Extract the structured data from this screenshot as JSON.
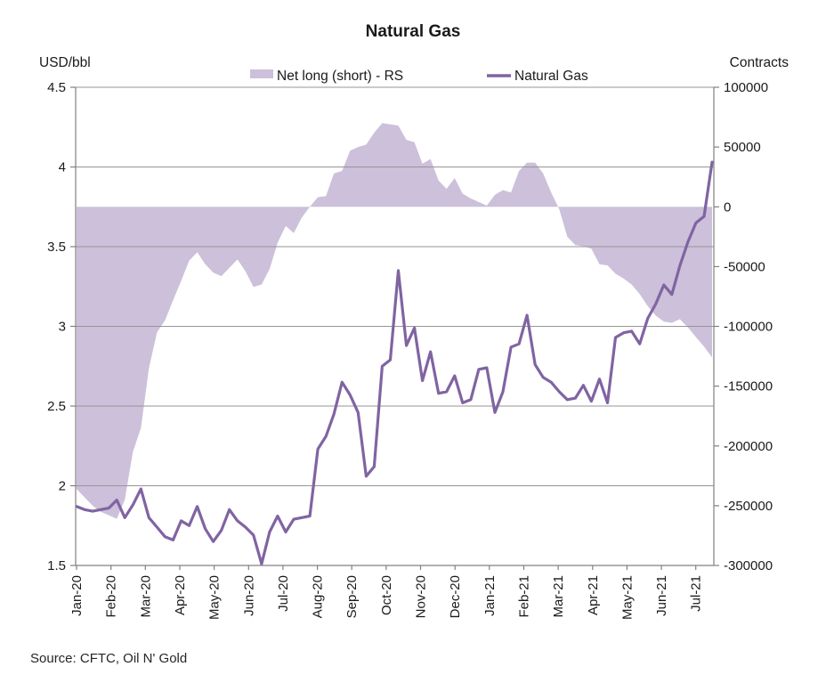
{
  "source_note": "Source: CFTC, Oil N' Gold",
  "chart_data": {
    "type": "area+line combo, dual axis",
    "title": "Natural Gas",
    "left_axis_label": "USD/bbl",
    "right_axis_label": "Contracts",
    "x_axis_type": "weekly data, monthly tick labels",
    "grid": "horizontal gridlines at left-axis ticks",
    "legend_position": "top, inline",
    "left_range": [
      1.5,
      4.5
    ],
    "right_range": [
      -300000,
      100000
    ],
    "left_tick_labels": [
      "4.5",
      "4",
      "3.5",
      "3",
      "2.5",
      "2",
      "1.5"
    ],
    "right_tick_labels": [
      "100000",
      "50000",
      "0",
      "-50000",
      "-100000",
      "-150000",
      "-200000",
      "-250000",
      "-300000"
    ],
    "x_tick_labels": [
      "Jan-20",
      "Feb-20",
      "Mar-20",
      "Apr-20",
      "May-20",
      "Jun-20",
      "Jul-20",
      "Aug-20",
      "Sep-20",
      "Oct-20",
      "Nov-20",
      "Dec-20",
      "Jan-21",
      "Feb-21",
      "Mar-21",
      "Apr-21",
      "May-21",
      "Jun-21",
      "Jul-21"
    ],
    "legend": {
      "area_label": "Net long (short) - RS",
      "line_label": "Natural Gas"
    },
    "colors": {
      "area": "#CCC0DA",
      "line": "#8064A2",
      "grid": "#969696",
      "axis": "#808080"
    },
    "series": [
      {
        "name": "Net long (short) - RS",
        "type": "area",
        "axis": "right",
        "unit": "contracts",
        "baseline": 0,
        "values": [
          -236000,
          -243000,
          -250000,
          -255000,
          -258000,
          -261000,
          -245000,
          -205000,
          -185000,
          -135000,
          -105000,
          -95000,
          -78000,
          -62000,
          -45000,
          -38000,
          -48000,
          -55000,
          -58000,
          -51000,
          -44000,
          -54000,
          -67000,
          -65000,
          -52000,
          -30000,
          -16000,
          -22000,
          -9000,
          0,
          8000,
          9000,
          28000,
          30000,
          47000,
          50000,
          52000,
          62000,
          70000,
          69000,
          68000,
          56000,
          54000,
          36000,
          40000,
          22000,
          15000,
          24000,
          11000,
          7000,
          4000,
          1000,
          10000,
          14000,
          12000,
          30000,
          37000,
          37000,
          28000,
          12000,
          -2000,
          -25000,
          -32000,
          -33000,
          -35000,
          -48000,
          -49000,
          -56000,
          -60000,
          -65000,
          -73000,
          -83000,
          -91000,
          -96000,
          -97000,
          -94000,
          -101000,
          -109000,
          -117000,
          -126000
        ]
      },
      {
        "name": "Natural Gas",
        "type": "line",
        "axis": "left",
        "unit": "USD/bbl",
        "values": [
          1.87,
          1.85,
          1.84,
          1.85,
          1.86,
          1.91,
          1.8,
          1.88,
          1.98,
          1.8,
          1.74,
          1.68,
          1.66,
          1.78,
          1.75,
          1.87,
          1.73,
          1.65,
          1.72,
          1.85,
          1.78,
          1.74,
          1.69,
          1.51,
          1.71,
          1.81,
          1.71,
          1.79,
          1.8,
          1.81,
          2.23,
          2.31,
          2.45,
          2.65,
          2.57,
          2.46,
          2.06,
          2.12,
          2.75,
          2.79,
          3.35,
          2.88,
          2.99,
          2.66,
          2.84,
          2.58,
          2.59,
          2.69,
          2.52,
          2.54,
          2.73,
          2.74,
          2.46,
          2.59,
          2.87,
          2.89,
          3.07,
          2.76,
          2.68,
          2.65,
          2.59,
          2.54,
          2.55,
          2.63,
          2.53,
          2.67,
          2.52,
          2.93,
          2.96,
          2.97,
          2.89,
          3.05,
          3.14,
          3.26,
          3.2,
          3.38,
          3.53,
          3.65,
          3.69,
          4.03
        ]
      }
    ]
  }
}
